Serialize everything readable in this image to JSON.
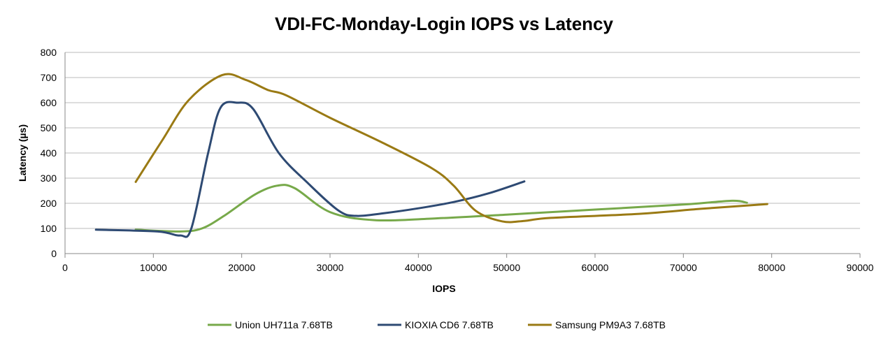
{
  "chart_data": {
    "type": "line",
    "title": "VDI-FC-Monday-Login IOPS vs Latency",
    "xlabel": "IOPS",
    "ylabel": "Latency (µs)",
    "xlim": [
      0,
      90000
    ],
    "ylim": [
      0,
      800
    ],
    "xticks": [
      0,
      10000,
      20000,
      30000,
      40000,
      50000,
      60000,
      70000,
      80000,
      90000
    ],
    "yticks": [
      0,
      100,
      200,
      300,
      400,
      500,
      600,
      700,
      800
    ],
    "grid": true,
    "legend": "bottom",
    "series": [
      {
        "name": "Union UH711a 7.68TB",
        "color": "#77a94a",
        "points": [
          [
            8000,
            95
          ],
          [
            13000,
            88
          ],
          [
            15500,
            100
          ],
          [
            18000,
            150
          ],
          [
            21500,
            235
          ],
          [
            24000,
            270
          ],
          [
            26000,
            260
          ],
          [
            30000,
            165
          ],
          [
            35000,
            133
          ],
          [
            42000,
            140
          ],
          [
            50000,
            155
          ],
          [
            60000,
            175
          ],
          [
            70000,
            195
          ],
          [
            75500,
            210
          ],
          [
            77200,
            202
          ]
        ]
      },
      {
        "name": "KIOXIA CD6 7.68TB",
        "color": "#2e4a73",
        "points": [
          [
            3500,
            95
          ],
          [
            10500,
            88
          ],
          [
            13000,
            72
          ],
          [
            14300,
            100
          ],
          [
            16200,
            400
          ],
          [
            17600,
            580
          ],
          [
            19500,
            600
          ],
          [
            21300,
            575
          ],
          [
            24200,
            400
          ],
          [
            27500,
            280
          ],
          [
            31000,
            170
          ],
          [
            33000,
            150
          ],
          [
            36000,
            160
          ],
          [
            40000,
            180
          ],
          [
            44000,
            205
          ],
          [
            48000,
            240
          ],
          [
            52000,
            287
          ]
        ]
      },
      {
        "name": "Samsung PM9A3 7.68TB",
        "color": "#9a7a14",
        "points": [
          [
            8000,
            285
          ],
          [
            11000,
            450
          ],
          [
            14000,
            610
          ],
          [
            17800,
            710
          ],
          [
            20500,
            690
          ],
          [
            23000,
            650
          ],
          [
            25000,
            630
          ],
          [
            30000,
            540
          ],
          [
            36000,
            440
          ],
          [
            41500,
            340
          ],
          [
            44000,
            270
          ],
          [
            46500,
            170
          ],
          [
            49500,
            128
          ],
          [
            52000,
            130
          ],
          [
            55000,
            142
          ],
          [
            65000,
            158
          ],
          [
            72000,
            178
          ],
          [
            79500,
            197
          ]
        ]
      }
    ]
  }
}
